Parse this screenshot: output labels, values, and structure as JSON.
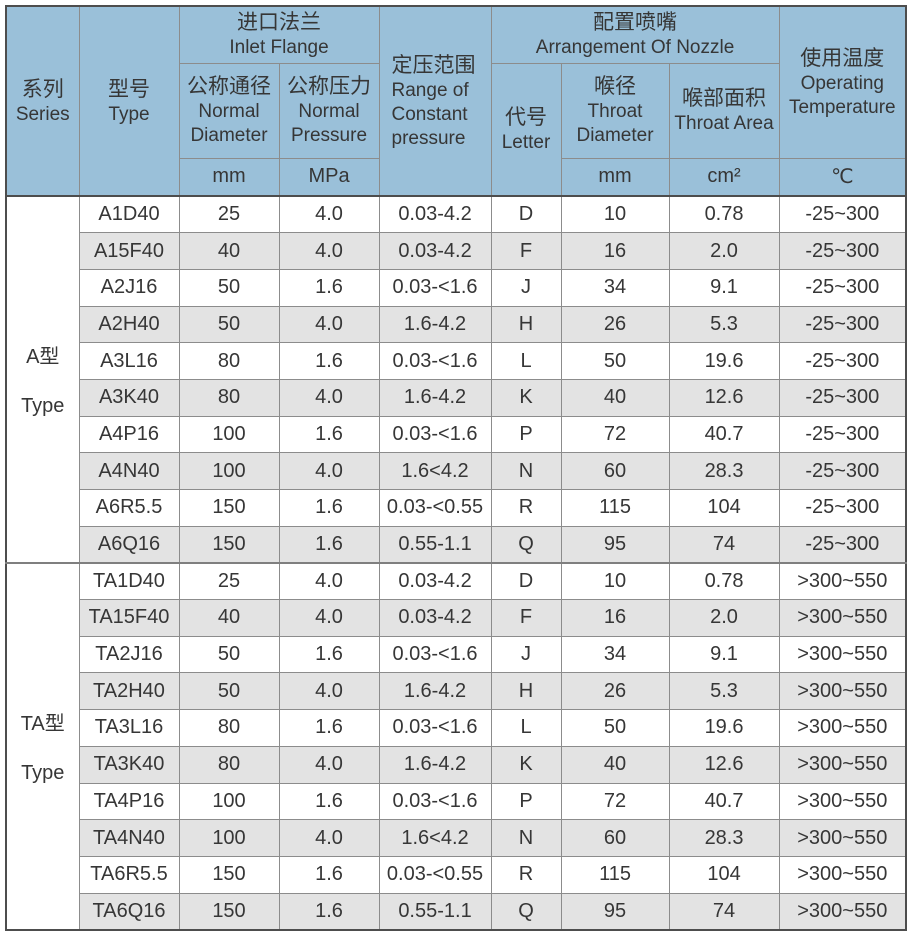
{
  "colors": {
    "header_bg": "#9AC0D9",
    "stripe_row_bg": "#E3E3E3",
    "grid_line": "#8C8C8C",
    "outer_border": "#4D4D4D",
    "section_divider": "#7F7F7F",
    "text": "#363636"
  },
  "table": {
    "header": {
      "series": {
        "zh": "系列",
        "en": "Series"
      },
      "type": {
        "zh": "型号",
        "en": "Type"
      },
      "inlet_flange": {
        "zh": "进口法兰",
        "en": "Inlet Flange"
      },
      "normal_diameter": {
        "zh": "公称通径",
        "en": "Normal Diameter"
      },
      "normal_pressure": {
        "zh": "公称压力",
        "en": "Normal Pressure"
      },
      "constant_pressure_range": {
        "zh": "定压范围",
        "en": "Range of Constant pressure"
      },
      "nozzle": {
        "zh": "配置喷嘴",
        "en": "Arrangement Of Nozzle"
      },
      "letter": {
        "zh": "代号",
        "en": "Letter"
      },
      "throat_diameter": {
        "zh": "喉径",
        "en": "Throat Diameter"
      },
      "throat_area": {
        "zh": "喉部面积",
        "en": "Throat Area"
      },
      "operating_temperature": {
        "zh": "使用温度",
        "en": "Operating Temperature"
      },
      "units": {
        "diameter": "mm",
        "pressure": "MPa",
        "throat_diameter": "mm",
        "throat_area": "cm²",
        "temperature": "℃"
      }
    },
    "columns": [
      "type",
      "normal_diameter_mm",
      "normal_pressure_mpa",
      "constant_pressure_range",
      "letter",
      "throat_diameter_mm",
      "throat_area_cm2",
      "operating_temperature_c"
    ],
    "sections": [
      {
        "series_zh": "A型",
        "series_en": "Type",
        "rows": [
          [
            "A1D40",
            "25",
            "4.0",
            "0.03-4.2",
            "D",
            "10",
            "0.78",
            "-25~300"
          ],
          [
            "A15F40",
            "40",
            "4.0",
            "0.03-4.2",
            "F",
            "16",
            "2.0",
            "-25~300"
          ],
          [
            "A2J16",
            "50",
            "1.6",
            "0.03-<1.6",
            "J",
            "34",
            "9.1",
            "-25~300"
          ],
          [
            "A2H40",
            "50",
            "4.0",
            "1.6-4.2",
            "H",
            "26",
            "5.3",
            "-25~300"
          ],
          [
            "A3L16",
            "80",
            "1.6",
            "0.03-<1.6",
            "L",
            "50",
            "19.6",
            "-25~300"
          ],
          [
            "A3K40",
            "80",
            "4.0",
            "1.6-4.2",
            "K",
            "40",
            "12.6",
            "-25~300"
          ],
          [
            "A4P16",
            "100",
            "1.6",
            "0.03-<1.6",
            "P",
            "72",
            "40.7",
            "-25~300"
          ],
          [
            "A4N40",
            "100",
            "4.0",
            "1.6<4.2",
            "N",
            "60",
            "28.3",
            "-25~300"
          ],
          [
            "A6R5.5",
            "150",
            "1.6",
            "0.03-<0.55",
            "R",
            "115",
            "104",
            "-25~300"
          ],
          [
            "A6Q16",
            "150",
            "1.6",
            "0.55-1.1",
            "Q",
            "95",
            "74",
            "-25~300"
          ]
        ]
      },
      {
        "series_zh": "TA型",
        "series_en": "Type",
        "rows": [
          [
            "TA1D40",
            "25",
            "4.0",
            "0.03-4.2",
            "D",
            "10",
            "0.78",
            ">300~550"
          ],
          [
            "TA15F40",
            "40",
            "4.0",
            "0.03-4.2",
            "F",
            "16",
            "2.0",
            ">300~550"
          ],
          [
            "TA2J16",
            "50",
            "1.6",
            "0.03-<1.6",
            "J",
            "34",
            "9.1",
            ">300~550"
          ],
          [
            "TA2H40",
            "50",
            "4.0",
            "1.6-4.2",
            "H",
            "26",
            "5.3",
            ">300~550"
          ],
          [
            "TA3L16",
            "80",
            "1.6",
            "0.03-<1.6",
            "L",
            "50",
            "19.6",
            ">300~550"
          ],
          [
            "TA3K40",
            "80",
            "4.0",
            "1.6-4.2",
            "K",
            "40",
            "12.6",
            ">300~550"
          ],
          [
            "TA4P16",
            "100",
            "1.6",
            "0.03-<1.6",
            "P",
            "72",
            "40.7",
            ">300~550"
          ],
          [
            "TA4N40",
            "100",
            "4.0",
            "1.6<4.2",
            "N",
            "60",
            "28.3",
            ">300~550"
          ],
          [
            "TA6R5.5",
            "150",
            "1.6",
            "0.03-<0.55",
            "R",
            "115",
            "104",
            ">300~550"
          ],
          [
            "TA6Q16",
            "150",
            "1.6",
            "0.55-1.1",
            "Q",
            "95",
            "74",
            ">300~550"
          ]
        ]
      }
    ]
  }
}
